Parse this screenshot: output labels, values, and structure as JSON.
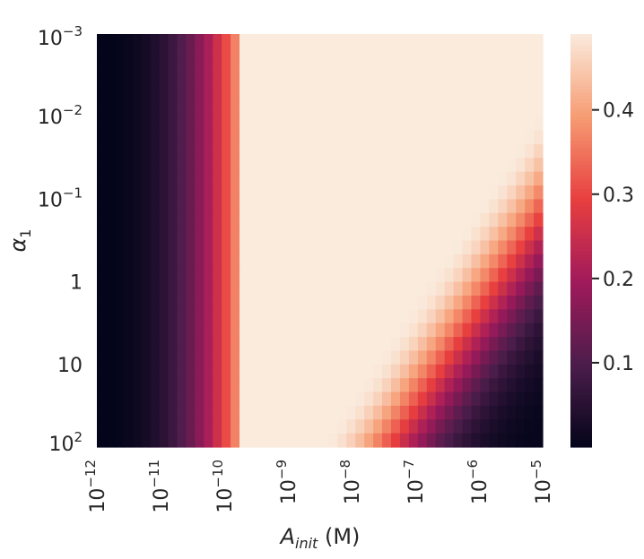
{
  "chart_data": {
    "type": "heatmap",
    "title": "",
    "xlabel": "A_init (M)",
    "ylabel": "α_1",
    "x_scale": "log",
    "y_scale": "log",
    "x_range_M": [
      1e-12,
      1e-05
    ],
    "y_range": [
      0.001,
      100
    ],
    "x_ticks": [
      {
        "base": "10",
        "exp": "−12",
        "value": 1e-12
      },
      {
        "base": "10",
        "exp": "−11",
        "value": 1e-11
      },
      {
        "base": "10",
        "exp": "−10",
        "value": 1e-10
      },
      {
        "base": "10",
        "exp": "−9",
        "value": 1e-09
      },
      {
        "base": "10",
        "exp": "−8",
        "value": 1e-08
      },
      {
        "base": "10",
        "exp": "−7",
        "value": 1e-07
      },
      {
        "base": "10",
        "exp": "−6",
        "value": 1e-06
      },
      {
        "base": "10",
        "exp": "−5",
        "value": 1e-05
      }
    ],
    "y_ticks": [
      {
        "base": "10",
        "exp": "−3",
        "value": 0.001
      },
      {
        "base": "10",
        "exp": "−2",
        "value": 0.01
      },
      {
        "base": "10",
        "exp": "−1",
        "value": 0.1
      },
      {
        "base": "1",
        "exp": "",
        "value": 1
      },
      {
        "base": "10",
        "exp": "",
        "value": 10
      },
      {
        "base": "10",
        "exp": "2",
        "value": 100
      }
    ],
    "colorbar": {
      "colormap": "rocket",
      "range": [
        0.0,
        0.49
      ],
      "ticks": [
        "0.1",
        "0.2",
        "0.3",
        "0.4"
      ]
    },
    "observations": {
      "low_value_region": "A_init below ~1e-10 M, all α_1",
      "sharp_transition_A_init_M": 1.5e-10,
      "plateau_value": 0.49,
      "decay_region": "high A_init (1e-8 to 1e-5 M) combined with high α_1 (>1)"
    }
  },
  "colors": {
    "rocket_stops": [
      "#03051a",
      "#4c1d4b",
      "#a11a5b",
      "#e83f3f",
      "#f69c73",
      "#faebdd"
    ]
  }
}
